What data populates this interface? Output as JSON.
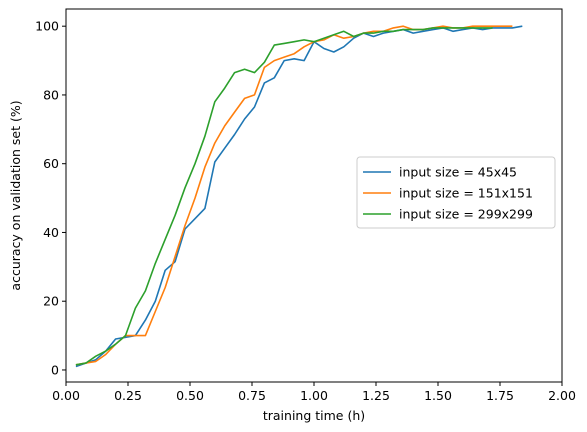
{
  "chart_data": {
    "type": "line",
    "title": "",
    "xlabel": "training time (h)",
    "ylabel": "accuracy on validation set (%)",
    "xlim": [
      0.0,
      2.0
    ],
    "ylim": [
      -3.5,
      105
    ],
    "xticks": [
      0.0,
      0.25,
      0.5,
      0.75,
      1.0,
      1.25,
      1.5,
      1.75,
      2.0
    ],
    "xtick_labels": [
      "0.00",
      "0.25",
      "0.50",
      "0.75",
      "1.00",
      "1.25",
      "1.50",
      "1.75",
      "2.00"
    ],
    "yticks": [
      0,
      20,
      40,
      60,
      80,
      100
    ],
    "ytick_labels": [
      "0",
      "20",
      "40",
      "60",
      "80",
      "100"
    ],
    "grid": false,
    "legend_position": "right",
    "series": [
      {
        "name": "input size = 45x45",
        "color": "#1f77b4",
        "x": [
          0.04,
          0.08,
          0.12,
          0.16,
          0.2,
          0.24,
          0.28,
          0.32,
          0.36,
          0.4,
          0.44,
          0.48,
          0.52,
          0.56,
          0.6,
          0.64,
          0.68,
          0.72,
          0.76,
          0.8,
          0.84,
          0.88,
          0.92,
          0.96,
          1.0,
          1.04,
          1.08,
          1.12,
          1.16,
          1.2,
          1.24,
          1.28,
          1.32,
          1.36,
          1.4,
          1.44,
          1.48,
          1.52,
          1.56,
          1.6,
          1.64,
          1.68,
          1.72,
          1.76,
          1.8,
          1.84
        ],
        "y": [
          1.0,
          2.0,
          3.0,
          5.5,
          9.0,
          9.5,
          10.0,
          14.5,
          20.0,
          29.0,
          31.5,
          41.0,
          44.0,
          47.0,
          60.5,
          64.5,
          68.5,
          73.0,
          76.5,
          83.5,
          85.0,
          90.0,
          90.5,
          90.0,
          95.5,
          93.5,
          92.5,
          94.0,
          96.5,
          98.0,
          97.0,
          98.0,
          98.5,
          99.0,
          98.0,
          98.5,
          99.0,
          99.5,
          98.5,
          99.0,
          99.5,
          99.0,
          99.5,
          99.5,
          99.5,
          100.0
        ]
      },
      {
        "name": "input size = 151x151",
        "color": "#ff7f0e",
        "x": [
          0.04,
          0.08,
          0.12,
          0.16,
          0.2,
          0.24,
          0.28,
          0.32,
          0.36,
          0.4,
          0.44,
          0.48,
          0.52,
          0.56,
          0.6,
          0.64,
          0.68,
          0.72,
          0.76,
          0.8,
          0.84,
          0.88,
          0.92,
          0.96,
          1.0,
          1.04,
          1.08,
          1.12,
          1.16,
          1.2,
          1.24,
          1.28,
          1.32,
          1.36,
          1.4,
          1.44,
          1.48,
          1.52,
          1.56,
          1.6,
          1.64,
          1.68,
          1.72,
          1.76,
          1.8
        ],
        "y": [
          1.5,
          2.0,
          2.5,
          4.5,
          7.5,
          10.0,
          10.0,
          10.0,
          17.0,
          24.0,
          33.0,
          42.0,
          50.0,
          59.0,
          66.0,
          71.0,
          75.0,
          79.0,
          80.0,
          88.0,
          90.0,
          91.0,
          92.0,
          94.0,
          95.5,
          96.0,
          97.5,
          96.5,
          97.0,
          98.0,
          98.5,
          98.5,
          99.5,
          100.0,
          99.0,
          99.0,
          99.5,
          100.0,
          99.5,
          99.5,
          100.0,
          100.0,
          100.0,
          100.0,
          100.0
        ]
      },
      {
        "name": "input size = 299x299",
        "color": "#2ca02c",
        "x": [
          0.04,
          0.08,
          0.12,
          0.16,
          0.2,
          0.24,
          0.28,
          0.32,
          0.36,
          0.4,
          0.44,
          0.48,
          0.52,
          0.56,
          0.6,
          0.64,
          0.68,
          0.72,
          0.76,
          0.8,
          0.84,
          0.88,
          0.92,
          0.96,
          1.0,
          1.04,
          1.08,
          1.12,
          1.16,
          1.2,
          1.24,
          1.28,
          1.32,
          1.36,
          1.4,
          1.44,
          1.48,
          1.52,
          1.56,
          1.6,
          1.64,
          1.68,
          1.72
        ],
        "y": [
          1.5,
          2.0,
          4.0,
          5.5,
          7.5,
          10.0,
          18.0,
          23.0,
          31.0,
          38.0,
          45.0,
          53.0,
          60.0,
          68.0,
          78.0,
          82.0,
          86.5,
          87.5,
          86.5,
          89.5,
          94.5,
          95.0,
          95.5,
          96.0,
          95.5,
          96.5,
          97.5,
          98.5,
          97.0,
          98.0,
          98.0,
          98.5,
          98.5,
          99.0,
          99.0,
          99.0,
          99.5,
          99.5,
          99.5,
          99.5,
          99.5,
          99.5,
          99.5
        ]
      }
    ]
  }
}
